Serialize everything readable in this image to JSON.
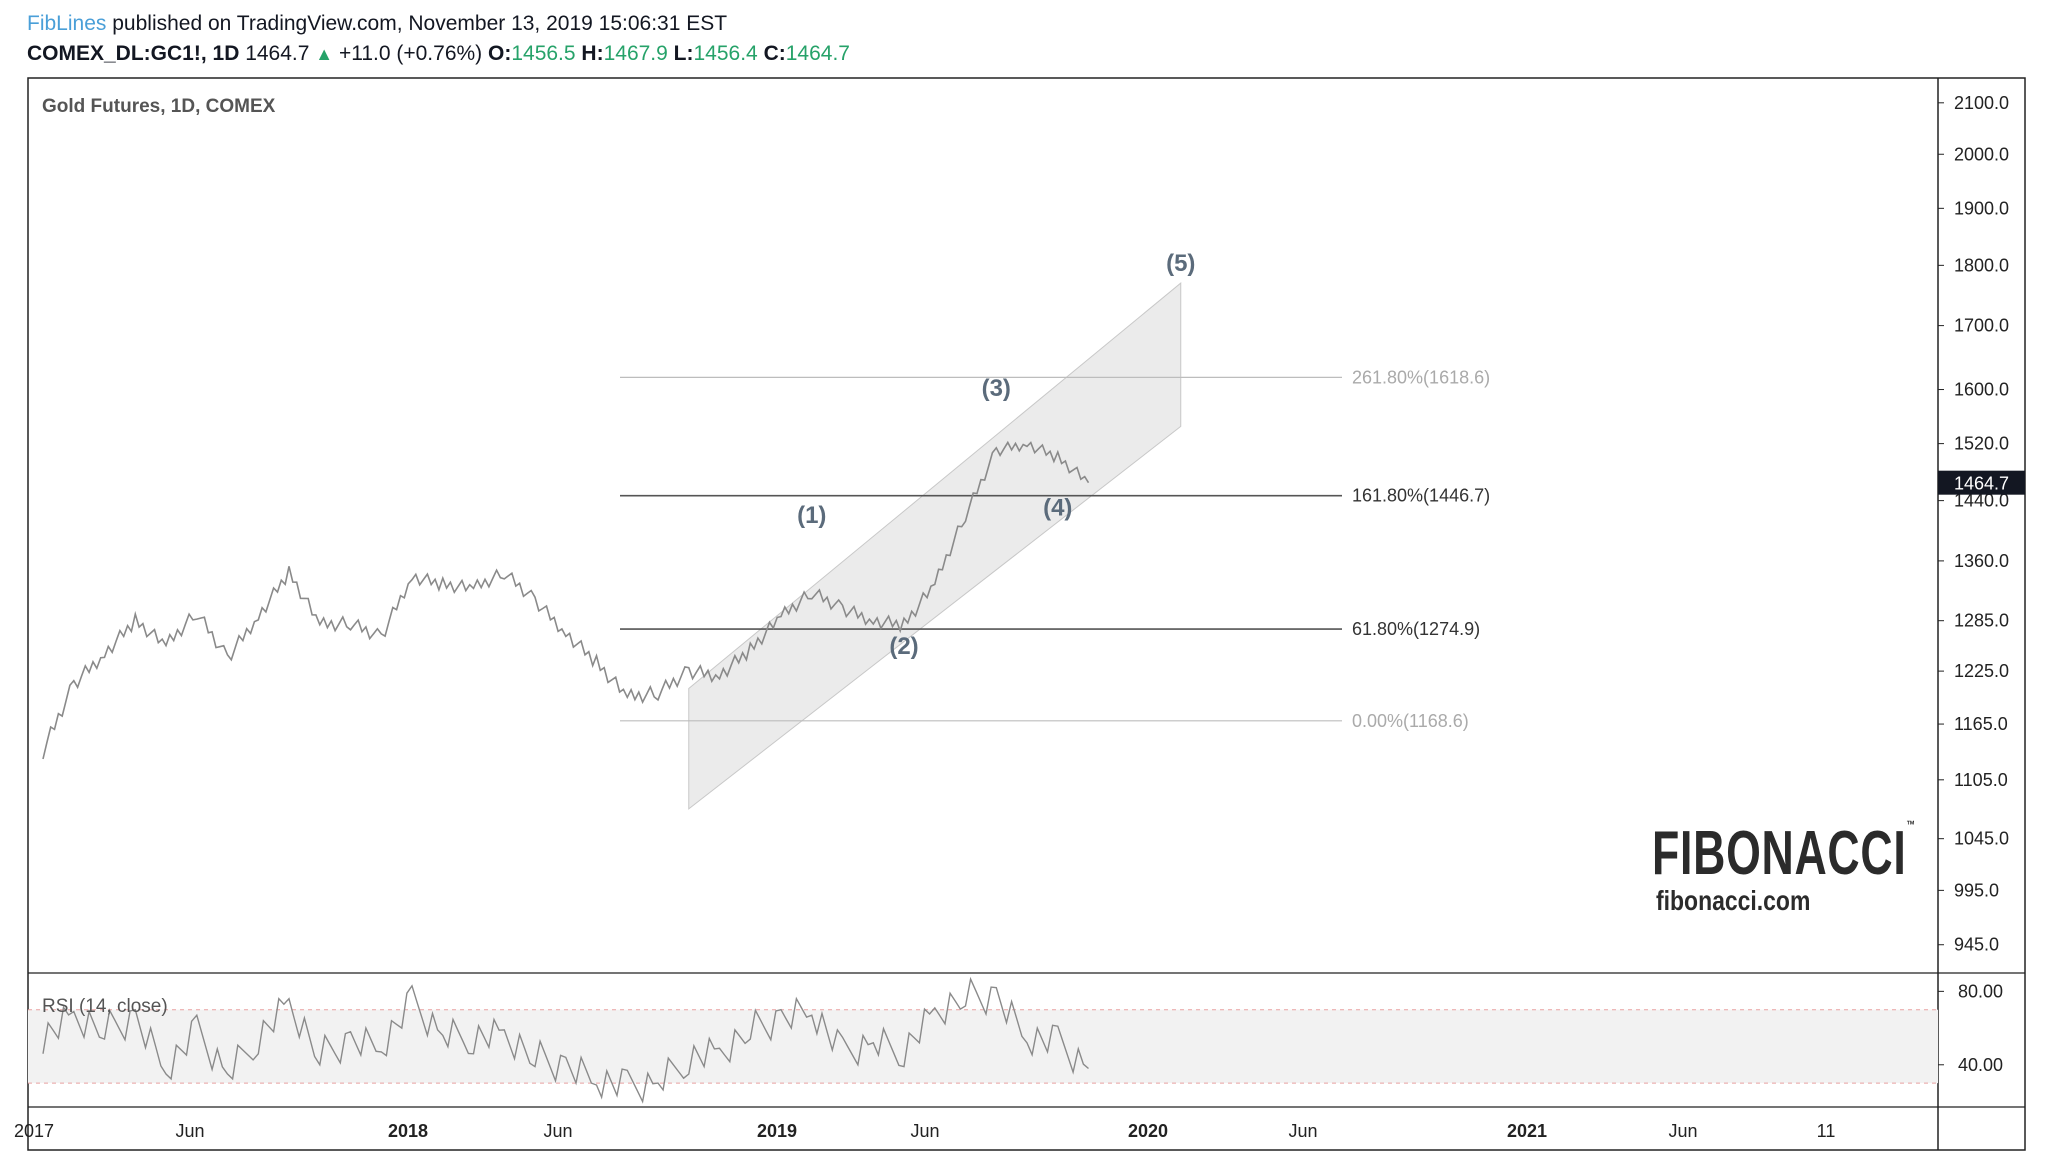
{
  "header": {
    "author": "FibLines",
    "published_text": "published on TradingView.com, November 13, 2019 15:06:31 EST",
    "symbol": "COMEX_DL:GC1!, 1D",
    "last": "1464.7",
    "change": "+11.0 (+0.76%)",
    "o_label": "O:",
    "o_value": "1456.5",
    "h_label": "H:",
    "h_value": "1467.9",
    "l_label": "L:",
    "l_value": "1456.4",
    "c_label": "C:",
    "c_value": "1464.7"
  },
  "branding": {
    "logo_text": "FIBONACCI",
    "tm": "™",
    "url": "fibonacci.com"
  },
  "colors": {
    "price_line": "#8a8a8a",
    "channel_fill": "#e6e6e6",
    "fib_dark": "#555555",
    "fib_light": "#bdbdbd",
    "wave_label": "#5b6b7b",
    "last_price_bg": "#131722",
    "rsi_band": "#f2f2f2",
    "rsi_dash": "#e8a0a0"
  },
  "chart_data": [
    {
      "type": "line",
      "title": "Gold Futures, 1D, COMEX",
      "price_axis_ticks": [
        "2100.0",
        "2000.0",
        "1900.0",
        "1800.0",
        "1700.0",
        "1600.0",
        "1520.0",
        "1440.0",
        "1360.0",
        "1285.0",
        "1225.0",
        "1165.0",
        "1105.0",
        "1045.0",
        "995.0",
        "945.0"
      ],
      "ylim": [
        920,
        2150
      ],
      "y_scale": "log",
      "last_price_label": "1464.7",
      "time_axis_ticks": [
        "2017",
        "Jun",
        "2018",
        "Jun",
        "2019",
        "Jun",
        "2020",
        "Jun",
        "2021",
        "Jun",
        "11"
      ],
      "series": [
        {
          "x": [
            "2017-01",
            "2017-02",
            "2017-03",
            "2017-04",
            "2017-05",
            "2017-06",
            "2017-07",
            "2017-08",
            "2017-09",
            "2017-10",
            "2017-11",
            "2017-12",
            "2018-01",
            "2018-02",
            "2018-03",
            "2018-04",
            "2018-05",
            "2018-06",
            "2018-07",
            "2018-08",
            "2018-09",
            "2018-10",
            "2018-11",
            "2018-12",
            "2019-01",
            "2019-02",
            "2019-03",
            "2019-04",
            "2019-05",
            "2019-06",
            "2019-07",
            "2019-08",
            "2019-09",
            "2019-10",
            "2019-11"
          ],
          "values": [
            1135,
            1210,
            1245,
            1285,
            1255,
            1295,
            1240,
            1290,
            1345,
            1280,
            1282,
            1265,
            1340,
            1330,
            1325,
            1345,
            1310,
            1270,
            1235,
            1195,
            1200,
            1225,
            1220,
            1250,
            1290,
            1320,
            1300,
            1285,
            1280,
            1330,
            1420,
            1510,
            1520,
            1500,
            1464.7
          ]
        }
      ],
      "fibonacci_levels": [
        {
          "label": "261.80%(1618.6)",
          "price": 1618.6
        },
        {
          "label": "161.80%(1446.7)",
          "price": 1446.7
        },
        {
          "label": "61.80%(1274.9)",
          "price": 1274.9
        },
        {
          "label": "0.00%(1168.6)",
          "price": 1168.6
        }
      ],
      "channel": {
        "start": "2018-10",
        "end": "2020-02",
        "upper_start": 1205,
        "upper_end": 1770,
        "lower_start": 1075,
        "lower_end": 1545
      },
      "wave_labels": [
        {
          "label": "(1)",
          "date": "2019-02",
          "price": 1410
        },
        {
          "label": "(2)",
          "date": "2019-05",
          "price": 1245
        },
        {
          "label": "(3)",
          "date": "2019-08",
          "price": 1590
        },
        {
          "label": "(4)",
          "date": "2019-10",
          "price": 1420
        },
        {
          "label": "(5)",
          "date": "2020-02",
          "price": 1790
        }
      ]
    },
    {
      "type": "line",
      "title": "RSI (14, close)",
      "axis_ticks": [
        "80.00",
        "40.00"
      ],
      "ylim": [
        17,
        90
      ],
      "band": [
        30,
        70
      ],
      "series": [
        {
          "x": [
            "2017-01",
            "2017-02",
            "2017-03",
            "2017-04",
            "2017-05",
            "2017-06",
            "2017-07",
            "2017-08",
            "2017-09",
            "2017-10",
            "2017-11",
            "2017-12",
            "2018-01",
            "2018-02",
            "2018-03",
            "2018-04",
            "2018-05",
            "2018-06",
            "2018-07",
            "2018-08",
            "2018-09",
            "2018-10",
            "2018-11",
            "2018-12",
            "2019-01",
            "2019-02",
            "2019-03",
            "2019-04",
            "2019-05",
            "2019-06",
            "2019-07",
            "2019-08",
            "2019-09",
            "2019-10",
            "2019-11"
          ],
          "values": [
            55,
            66,
            60,
            64,
            38,
            58,
            35,
            55,
            73,
            46,
            52,
            50,
            74,
            56,
            55,
            56,
            45,
            38,
            32,
            28,
            30,
            44,
            46,
            60,
            64,
            70,
            46,
            52,
            48,
            68,
            78,
            76,
            55,
            52,
            38
          ]
        }
      ]
    }
  ]
}
